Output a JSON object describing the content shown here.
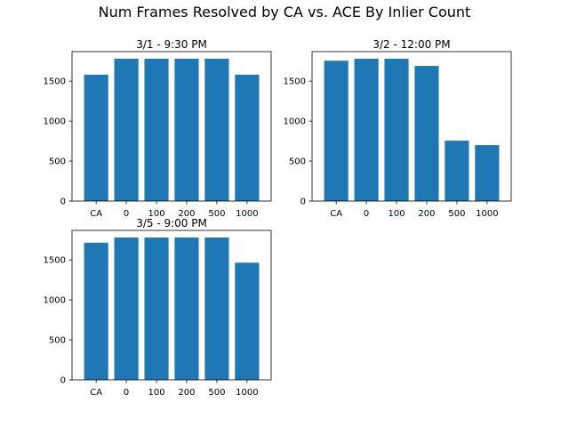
{
  "figure": {
    "suptitle": "Num Frames Resolved by CA vs. ACE By Inlier Count"
  },
  "style": {
    "bar_color": "#1f77b4",
    "axis_color": "#000000",
    "background": "#ffffff"
  },
  "chart_data": [
    {
      "type": "bar",
      "title": "3/1 - 9:30 PM",
      "categories": [
        "CA",
        "0",
        "100",
        "200",
        "500",
        "1000"
      ],
      "values": [
        1580,
        1780,
        1780,
        1780,
        1780,
        1580
      ],
      "yticks": [
        0,
        500,
        1000,
        1500
      ],
      "ylim": [
        0,
        1869
      ],
      "xlabel": "",
      "ylabel": "",
      "grid": false
    },
    {
      "type": "bar",
      "title": "3/2 - 12:00 PM",
      "categories": [
        "CA",
        "0",
        "100",
        "200",
        "500",
        "1000"
      ],
      "values": [
        1755,
        1780,
        1780,
        1690,
        755,
        700
      ],
      "yticks": [
        0,
        500,
        1000,
        1500
      ],
      "ylim": [
        0,
        1869
      ],
      "xlabel": "",
      "ylabel": "",
      "grid": false
    },
    {
      "type": "bar",
      "title": "3/5 - 9:00 PM",
      "categories": [
        "CA",
        "0",
        "100",
        "200",
        "500",
        "1000"
      ],
      "values": [
        1715,
        1780,
        1780,
        1780,
        1780,
        1465
      ],
      "yticks": [
        0,
        500,
        1000,
        1500
      ],
      "ylim": [
        0,
        1869
      ],
      "xlabel": "",
      "ylabel": "",
      "grid": false
    }
  ]
}
